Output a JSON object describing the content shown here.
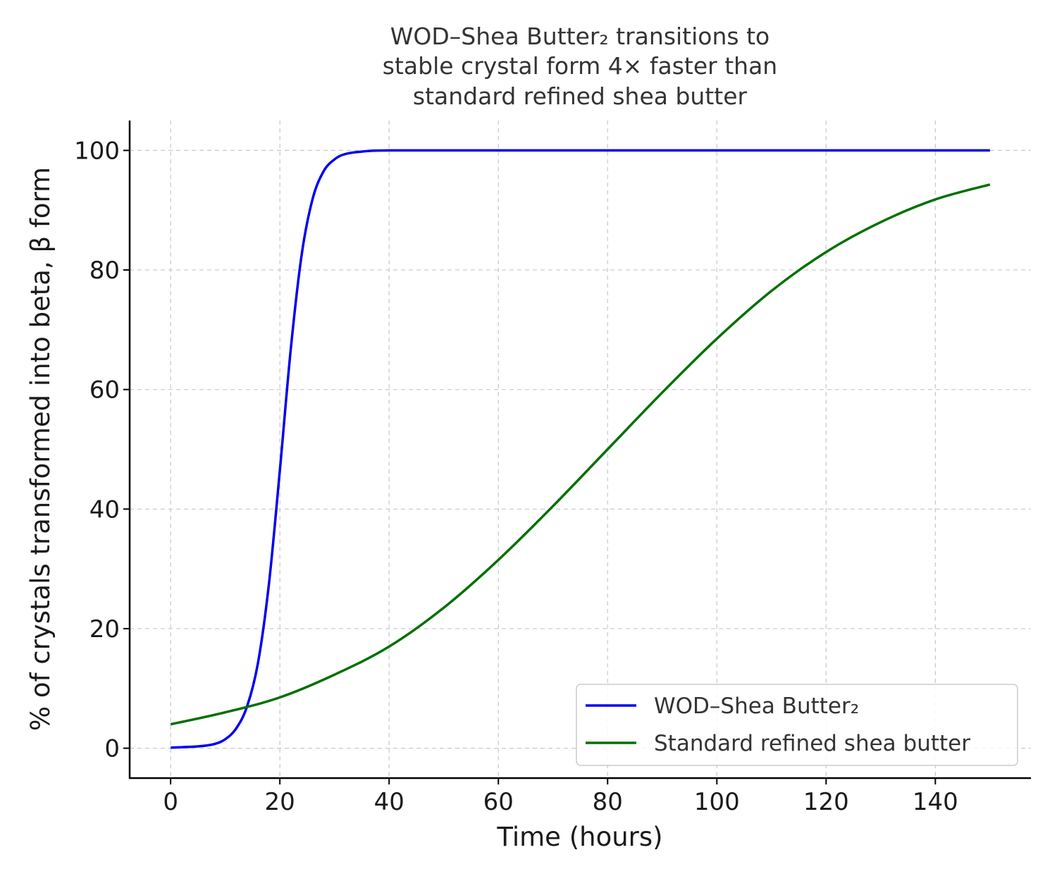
{
  "chart_data": {
    "type": "line",
    "title_lines": [
      "WOD–Shea Butter₂ transitions to",
      "stable crystal form 4× faster than",
      "standard refined shea butter"
    ],
    "xlabel": "Time (hours)",
    "ylabel": "% of crystals transformed into beta, β form",
    "xlim": [
      -7.5,
      157.5
    ],
    "ylim": [
      -5,
      105
    ],
    "xticks": [
      0,
      20,
      40,
      60,
      80,
      100,
      120,
      140
    ],
    "yticks": [
      0,
      20,
      40,
      60,
      80,
      100
    ],
    "grid": true,
    "legend_position": "lower-right",
    "series": [
      {
        "name": "WOD–Shea Butter₂",
        "color": "#0000ee",
        "x": [
          0,
          5,
          8,
          10,
          12,
          14,
          16,
          18,
          20,
          22,
          24,
          26,
          28,
          30,
          32,
          35,
          40,
          60,
          80,
          100,
          120,
          150
        ],
        "y": [
          0.1,
          0.3,
          0.7,
          1.5,
          3.3,
          7.0,
          14.3,
          27.5,
          46.5,
          66.8,
          82.6,
          91.9,
          96.5,
          98.5,
          99.4,
          99.8,
          100,
          100,
          100,
          100,
          100,
          100
        ]
      },
      {
        "name": "Standard refined shea butter",
        "color": "#007000",
        "x": [
          0,
          10,
          20,
          30,
          40,
          50,
          60,
          70,
          80,
          90,
          100,
          110,
          120,
          130,
          140,
          150
        ],
        "y": [
          4,
          6,
          8.5,
          12.3,
          17,
          23.5,
          31.5,
          40.5,
          50,
          59.5,
          68.5,
          76.5,
          83,
          88,
          91.8,
          94.3
        ]
      }
    ]
  }
}
